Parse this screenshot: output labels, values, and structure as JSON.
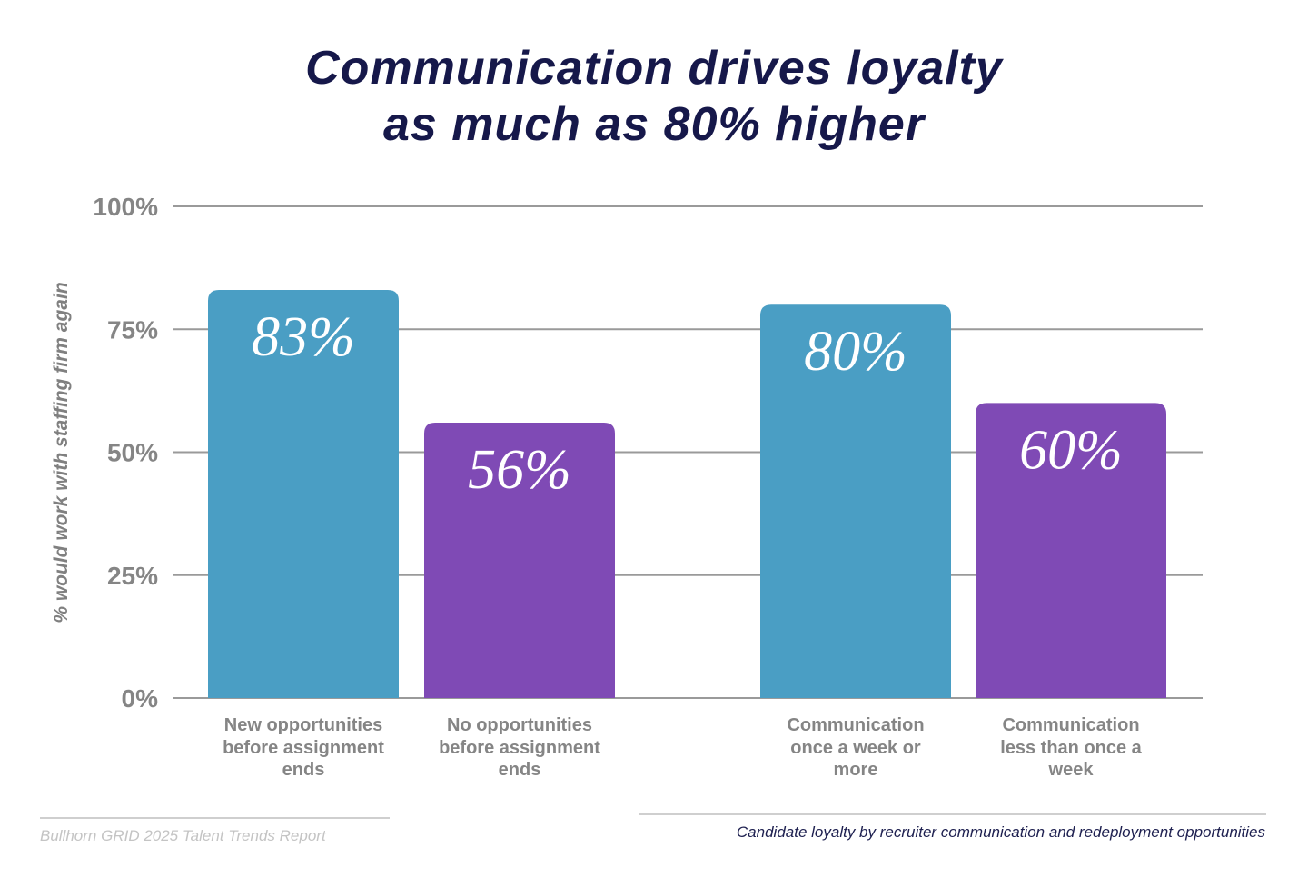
{
  "chart_data": {
    "type": "bar",
    "title": "Communication drives loyalty\nas much as 80% higher",
    "ylabel": "% would work with staffing firm again",
    "ylim": [
      0,
      100
    ],
    "yticks": [
      "0%",
      "25%",
      "50%",
      "75%",
      "100%"
    ],
    "ytick_values": [
      0,
      25,
      50,
      75,
      100
    ],
    "grid": true,
    "categories": [
      "New opportunities\nbefore assignment\nends",
      "No opportunities\nbefore assignment\nends",
      "Communication\nonce a week or\nmore",
      "Communication\nless than once a\nweek"
    ],
    "values": [
      83,
      56,
      80,
      60
    ],
    "data_labels": [
      "83%",
      "56%",
      "80%",
      "60%"
    ],
    "bar_colors": [
      "#4a9ec4",
      "#7f4ab5",
      "#4a9ec4",
      "#7f4ab5"
    ]
  },
  "footer": {
    "source": "Bullhorn GRID 2025 Talent Trends Report",
    "caption": "Candidate loyalty by recruiter communication and redeployment opportunities"
  }
}
